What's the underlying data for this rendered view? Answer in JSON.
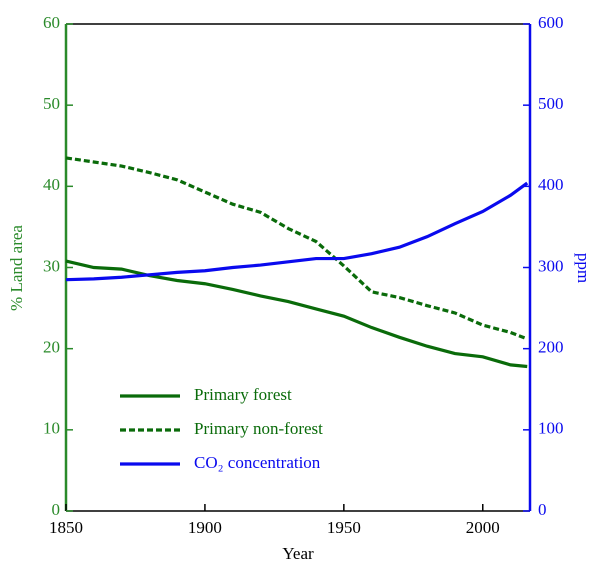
{
  "chart_data": {
    "type": "line",
    "xlabel": "Year",
    "ylabel": "% Land area",
    "y2label": "ppm",
    "x": [
      1850,
      1860,
      1870,
      1880,
      1890,
      1900,
      1910,
      1920,
      1930,
      1940,
      1950,
      1960,
      1970,
      1980,
      1990,
      2000,
      2010,
      2016
    ],
    "series": [
      {
        "name": "Primary forest",
        "color": "#0a6b0a",
        "dash": "solid",
        "axis": "y",
        "values": [
          30.8,
          30.0,
          29.8,
          29.0,
          28.4,
          28.0,
          27.3,
          26.5,
          25.8,
          24.9,
          24.0,
          22.6,
          21.4,
          20.3,
          19.4,
          19.0,
          18.0,
          17.8
        ]
      },
      {
        "name": "Primary non-forest",
        "color": "#0a6b0a",
        "dash": "dashed",
        "axis": "y",
        "values": [
          43.5,
          43.0,
          42.5,
          41.7,
          40.8,
          39.3,
          37.8,
          36.8,
          34.8,
          33.2,
          30.2,
          27.0,
          26.3,
          25.3,
          24.4,
          22.9,
          22.0,
          21.2
        ]
      },
      {
        "name": "CO₂ concentration",
        "color": "#0a0aee",
        "dash": "solid",
        "axis": "y2",
        "values": [
          285,
          286,
          288,
          291,
          294,
          296,
          300,
          303,
          307,
          311,
          311,
          317,
          325,
          338,
          354,
          369,
          389,
          404
        ]
      }
    ],
    "xlim": [
      1850,
      2017
    ],
    "xticks": [
      1850,
      1900,
      1950,
      2000
    ],
    "ylim": [
      0,
      60
    ],
    "yticks": [
      0,
      10,
      20,
      30,
      40,
      50,
      60
    ],
    "ycolor": "#2a8a2a",
    "y2lim": [
      0,
      600
    ],
    "y2ticks": [
      0,
      100,
      200,
      300,
      400,
      500,
      600
    ],
    "y2color": "#0a0aee",
    "legend": "lower left"
  }
}
